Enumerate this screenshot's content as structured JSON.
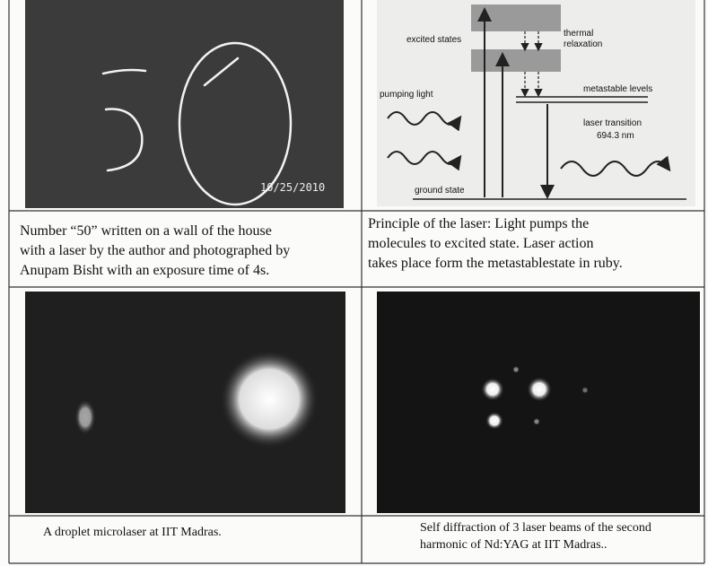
{
  "cells": [
    {
      "timestamp": "10/25/2010",
      "caption": [
        "Number “50” written on a wall of the house",
        "with a laser by the author and photographed by",
        "Anupam Bisht with an exposure time of 4s."
      ]
    },
    {
      "diagram": {
        "excited_states": "excited states",
        "thermal_relaxation": [
          "thermal",
          "relaxation"
        ],
        "pumping_light": "pumping light",
        "metastable_levels": "metastable levels",
        "laser_transition": "laser transition",
        "wavelength": "694.3 nm",
        "ground_state": "ground state"
      },
      "caption": [
        "Principle of the laser:  Light pumps the",
        "molecules to excited state. Laser action",
        "takes place form the metastablestate in ruby."
      ]
    },
    {
      "caption": [
        "A droplet microlaser at IIT Madras."
      ]
    },
    {
      "caption": [
        "Self diffraction of 3 laser beams of the second",
        "harmonic of Nd:YAG at IIT Madras.."
      ]
    }
  ]
}
